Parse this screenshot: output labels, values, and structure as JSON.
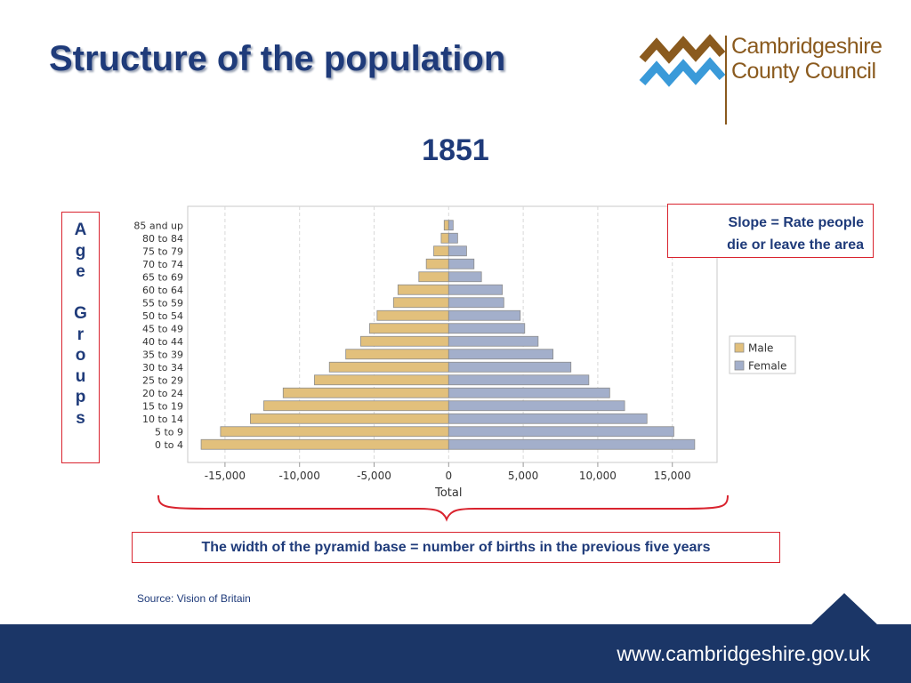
{
  "header": {
    "title": "Structure of the population",
    "logo_text_line1": "Cambridgeshire",
    "logo_text_line2": "County Council"
  },
  "year_label": "1851",
  "annotations": {
    "age_groups_letters": [
      "A",
      "g",
      "e",
      "",
      "G",
      "r",
      "o",
      "u",
      "p",
      "s"
    ],
    "slope_line1": "Slope = Rate people",
    "slope_line2": "die or leave the area",
    "base_note": "The width of the pyramid base = number of births in the previous five years",
    "source": "Source: Vision of Britain"
  },
  "footer": {
    "url": "www.cambridgeshire.gov.uk"
  },
  "colors": {
    "title": "#1f3b7a",
    "male": "#e2c07c",
    "female": "#a3afcb",
    "red": "#d9232e",
    "footer": "#1b3667",
    "logo_brown": "#8a5a1e",
    "logo_blue": "#3a9ad9"
  },
  "chart_data": {
    "type": "bar",
    "orientation": "horizontal-pyramid",
    "categories": [
      "85 and up",
      "80 to 84",
      "75 to 79",
      "70 to 74",
      "65 to 69",
      "60 to 64",
      "55 to 59",
      "50 to 54",
      "45 to 49",
      "40 to 44",
      "35 to 39",
      "30 to 34",
      "25 to 29",
      "20 to 24",
      "15 to 19",
      "10 to 14",
      "5 to 9",
      "0 to 4"
    ],
    "series": [
      {
        "name": "Male",
        "values": [
          -300,
          -500,
          -1000,
          -1500,
          -2000,
          -3400,
          -3700,
          -4800,
          -5300,
          -5900,
          -6900,
          -8000,
          -9000,
          -11100,
          -12400,
          -13300,
          -15300,
          -16600
        ]
      },
      {
        "name": "Female",
        "values": [
          300,
          600,
          1200,
          1700,
          2200,
          3600,
          3700,
          4800,
          5100,
          6000,
          7000,
          8200,
          9400,
          10800,
          11800,
          13300,
          15100,
          16500
        ]
      }
    ],
    "xlabel": "Total",
    "ylabel": "",
    "xlim": [
      -17500,
      18000
    ],
    "xticks": [
      -15000,
      -10000,
      -5000,
      0,
      5000,
      10000,
      15000
    ],
    "xtick_labels": [
      "-15,000",
      "-10,000",
      "-5,000",
      "0",
      "5,000",
      "10,000",
      "15,000"
    ],
    "grid": true,
    "legend": [
      "Male",
      "Female"
    ],
    "legend_position": "right"
  }
}
